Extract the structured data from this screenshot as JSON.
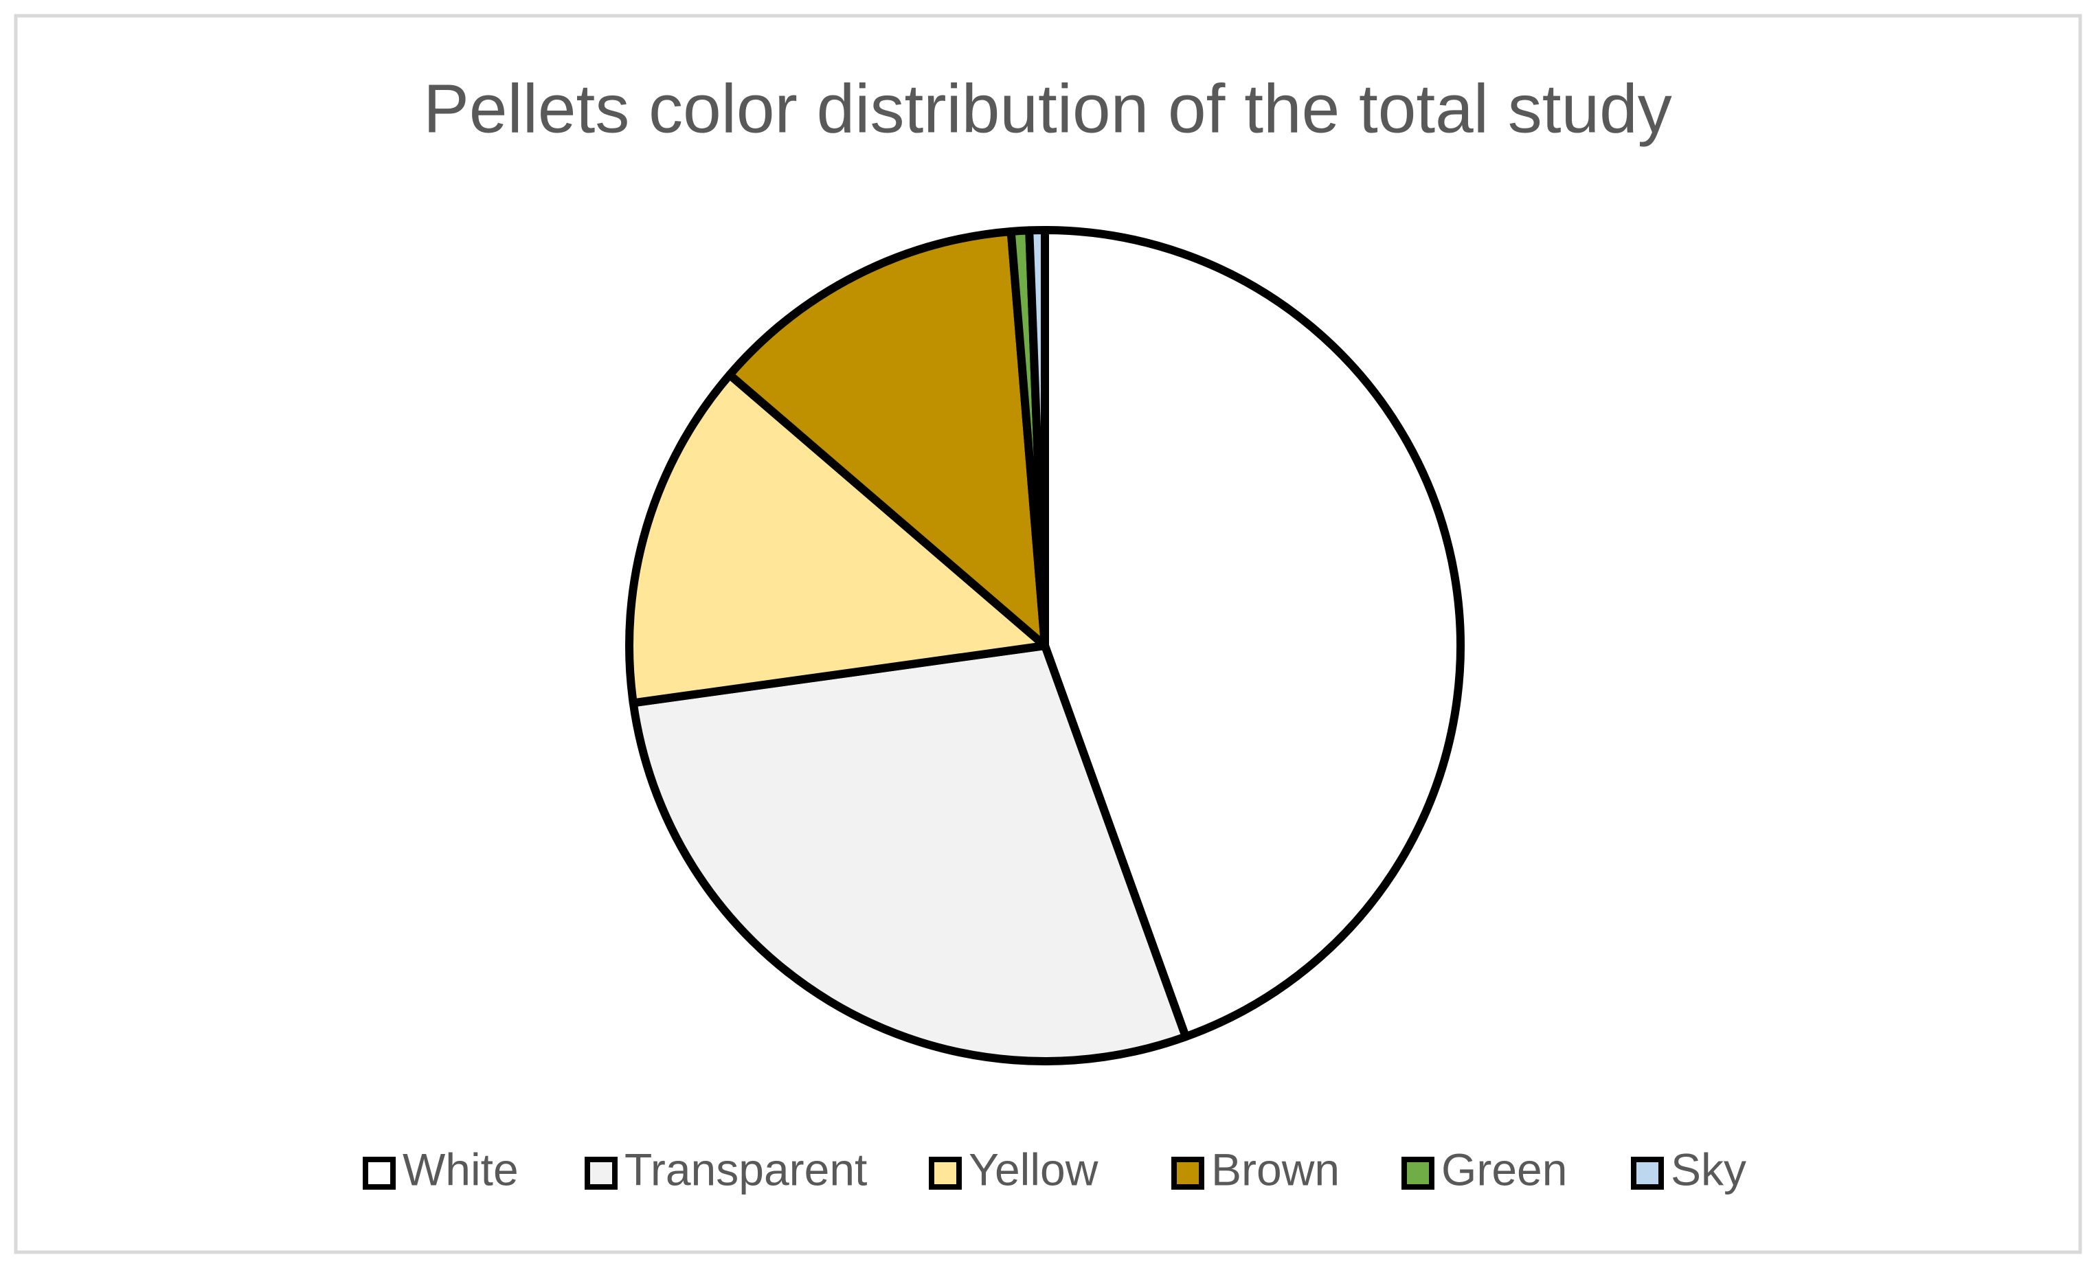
{
  "chart_data": {
    "type": "pie",
    "title": "Pellets color distribution of the total study",
    "categories": [
      "White",
      "Transparent",
      "Yellow",
      "Brown",
      "Green",
      "Sky"
    ],
    "values": [
      44.5,
      28.3,
      13.5,
      12.4,
      0.7,
      0.6
    ],
    "colors": [
      "#ffffff",
      "#f2f2f2",
      "#ffe699",
      "#bf9000",
      "#70ad47",
      "#bdd7ee"
    ],
    "legend": "bottom"
  }
}
